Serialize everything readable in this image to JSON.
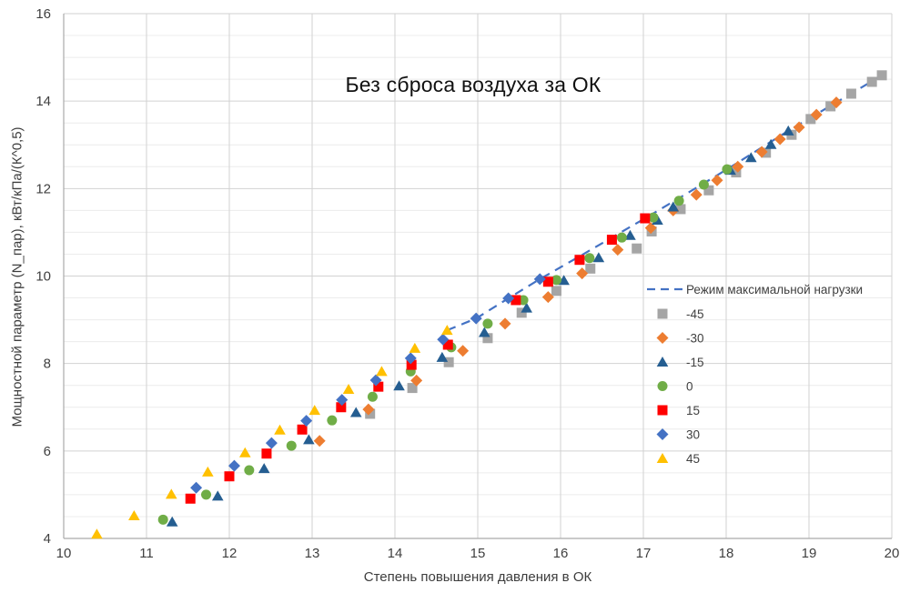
{
  "chart_data": {
    "type": "scatter",
    "title": "Без сброса воздуха за ОК",
    "xlabel": "Степень повышения давления в ОК",
    "ylabel": "Мощностной параметр (N_пар), кВт/кПа/(К^0,5)",
    "xlim": [
      10,
      20
    ],
    "ylim": [
      4,
      16
    ],
    "x_ticks": [
      10,
      11,
      12,
      13,
      14,
      15,
      16,
      17,
      18,
      19,
      20
    ],
    "y_ticks": [
      4,
      6,
      8,
      10,
      12,
      14,
      16
    ],
    "y_minor_step": 0.5,
    "grid": true,
    "legend_position": "right-middle",
    "max_load_line": {
      "label": "Режим максимальной нагрузки",
      "color": "#4472C4",
      "style": "dashed",
      "points": [
        [
          14.63,
          8.76
        ],
        [
          14.98,
          9.03
        ],
        [
          15.37,
          9.49
        ],
        [
          15.75,
          9.93
        ],
        [
          16.23,
          10.45
        ],
        [
          16.62,
          10.88
        ],
        [
          17.02,
          11.32
        ],
        [
          17.43,
          11.78
        ],
        [
          18.01,
          12.44
        ],
        [
          18.75,
          13.32
        ],
        [
          19.33,
          13.97
        ],
        [
          19.88,
          14.59
        ]
      ]
    },
    "series": [
      {
        "name": "-45",
        "marker": "square",
        "color": "#A5A5A5",
        "points": [
          [
            13.7,
            6.85
          ],
          [
            14.21,
            7.44
          ],
          [
            14.65,
            8.03
          ],
          [
            15.12,
            8.58
          ],
          [
            15.53,
            9.16
          ],
          [
            15.95,
            9.66
          ],
          [
            16.36,
            10.17
          ],
          [
            16.92,
            10.63
          ],
          [
            17.1,
            11.02
          ],
          [
            17.45,
            11.53
          ],
          [
            17.79,
            11.96
          ],
          [
            18.12,
            12.37
          ],
          [
            18.48,
            12.82
          ],
          [
            18.79,
            13.23
          ],
          [
            19.02,
            13.59
          ],
          [
            19.26,
            13.88
          ],
          [
            19.51,
            14.17
          ],
          [
            19.76,
            14.44
          ],
          [
            19.88,
            14.59
          ]
        ]
      },
      {
        "name": "-30",
        "marker": "diamond",
        "color": "#ED7D31",
        "points": [
          [
            13.09,
            6.23
          ],
          [
            13.68,
            6.95
          ],
          [
            14.26,
            7.61
          ],
          [
            14.82,
            8.29
          ],
          [
            15.33,
            8.91
          ],
          [
            15.85,
            9.52
          ],
          [
            16.26,
            10.06
          ],
          [
            16.69,
            10.6
          ],
          [
            17.09,
            11.1
          ],
          [
            17.36,
            11.5
          ],
          [
            17.64,
            11.86
          ],
          [
            17.89,
            12.19
          ],
          [
            18.14,
            12.5
          ],
          [
            18.43,
            12.84
          ],
          [
            18.65,
            13.13
          ],
          [
            18.88,
            13.4
          ],
          [
            19.09,
            13.69
          ],
          [
            19.33,
            13.97
          ]
        ]
      },
      {
        "name": "-15",
        "marker": "triangle",
        "color": "#255E91",
        "points": [
          [
            11.31,
            4.38
          ],
          [
            11.86,
            4.97
          ],
          [
            12.42,
            5.6
          ],
          [
            12.96,
            6.26
          ],
          [
            13.53,
            6.88
          ],
          [
            14.05,
            7.49
          ],
          [
            14.57,
            8.14
          ],
          [
            15.08,
            8.71
          ],
          [
            15.59,
            9.27
          ],
          [
            16.04,
            9.9
          ],
          [
            16.46,
            10.42
          ],
          [
            16.84,
            10.93
          ],
          [
            17.17,
            11.28
          ],
          [
            17.36,
            11.58
          ],
          [
            18.05,
            12.42
          ],
          [
            18.3,
            12.71
          ],
          [
            18.54,
            13.01
          ],
          [
            18.75,
            13.32
          ]
        ]
      },
      {
        "name": "0",
        "marker": "circle",
        "color": "#70AD47",
        "points": [
          [
            11.2,
            4.43
          ],
          [
            11.72,
            5.0
          ],
          [
            12.24,
            5.56
          ],
          [
            12.75,
            6.12
          ],
          [
            13.24,
            6.7
          ],
          [
            13.73,
            7.24
          ],
          [
            14.19,
            7.82
          ],
          [
            14.68,
            8.37
          ],
          [
            15.12,
            8.91
          ],
          [
            15.55,
            9.45
          ],
          [
            15.95,
            9.91
          ],
          [
            16.35,
            10.41
          ],
          [
            16.74,
            10.88
          ],
          [
            17.12,
            11.34
          ],
          [
            17.43,
            11.72
          ],
          [
            17.73,
            12.09
          ],
          [
            18.01,
            12.44
          ]
        ]
      },
      {
        "name": "15",
        "marker": "square",
        "color": "#FF0000",
        "points": [
          [
            11.53,
            4.91
          ],
          [
            12.0,
            5.42
          ],
          [
            12.45,
            5.94
          ],
          [
            12.88,
            6.49
          ],
          [
            13.35,
            7.0
          ],
          [
            13.8,
            7.47
          ],
          [
            14.2,
            7.97
          ],
          [
            14.64,
            8.43
          ],
          [
            15.46,
            9.45
          ],
          [
            15.85,
            9.87
          ],
          [
            16.23,
            10.37
          ],
          [
            16.62,
            10.83
          ],
          [
            17.02,
            11.32
          ]
        ]
      },
      {
        "name": "30",
        "marker": "diamond",
        "color": "#4472C4",
        "points": [
          [
            11.6,
            5.16
          ],
          [
            12.06,
            5.66
          ],
          [
            12.51,
            6.18
          ],
          [
            12.93,
            6.69
          ],
          [
            13.36,
            7.17
          ],
          [
            13.77,
            7.62
          ],
          [
            14.19,
            8.12
          ],
          [
            14.58,
            8.55
          ],
          [
            14.98,
            9.03
          ],
          [
            15.37,
            9.49
          ],
          [
            15.75,
            9.93
          ]
        ]
      },
      {
        "name": "45",
        "marker": "triangle",
        "color": "#FFC000",
        "points": [
          [
            10.4,
            4.1
          ],
          [
            10.85,
            4.52
          ],
          [
            11.3,
            5.01
          ],
          [
            11.74,
            5.52
          ],
          [
            12.19,
            5.96
          ],
          [
            12.61,
            6.48
          ],
          [
            13.03,
            6.93
          ],
          [
            13.44,
            7.41
          ],
          [
            13.84,
            7.82
          ],
          [
            14.24,
            8.35
          ],
          [
            14.63,
            8.76
          ]
        ]
      }
    ],
    "colors": {
      "axis_line": "#ABABAB",
      "grid_major": "#D2D2D2",
      "grid_minor": "#ECECEC",
      "tick_label": "#404040",
      "legend_label": "#404040"
    }
  }
}
